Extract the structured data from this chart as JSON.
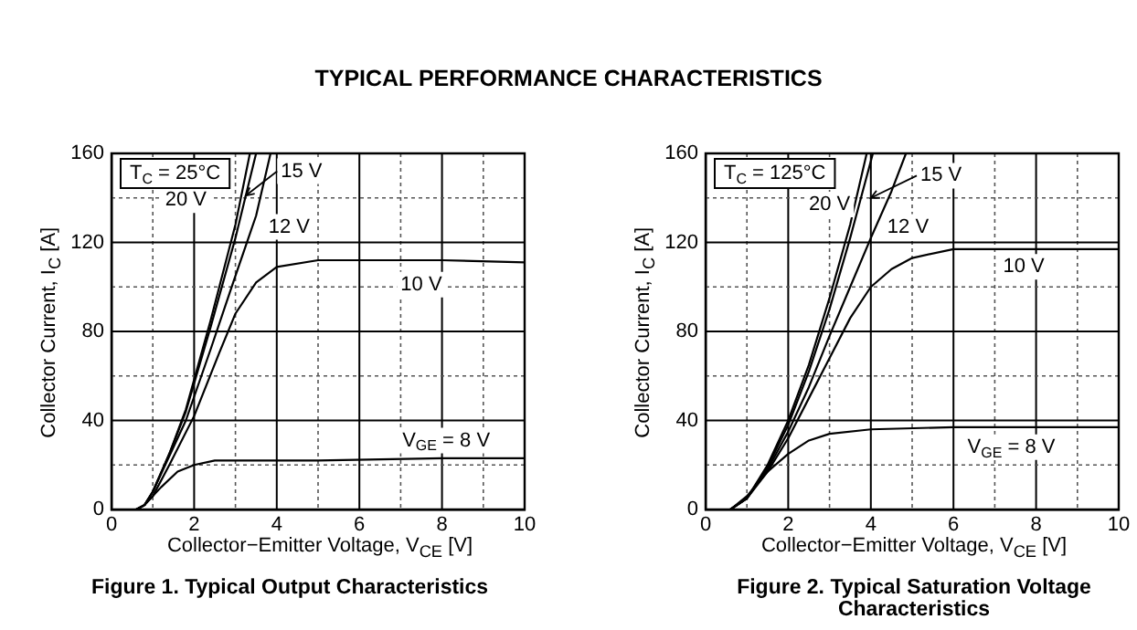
{
  "chart_data": [
    {
      "type": "line",
      "title": "Figure 1. Typical Output Characteristics",
      "xlabel": "Collector−Emitter Voltage, V$_{CE}$ [V]",
      "ylabel": "Collector Current, I$_{C}$ [A]",
      "annotations": [
        "TYPICAL PERFORMANCE CHARACTERISTICS",
        "T$_{C}$ = 25°C"
      ],
      "xlim": [
        0,
        10
      ],
      "ylim": [
        0,
        160
      ],
      "xticks": [
        0,
        {
          "value": 1,
          "label": null
        },
        2,
        {
          "value": 3,
          "label": null
        },
        4,
        {
          "value": 5,
          "label": null
        },
        6,
        {
          "value": 7,
          "label": null
        },
        8,
        {
          "value": 9,
          "label": null
        },
        10
      ],
      "yticks": [
        0,
        {
          "value": 20,
          "label": null
        },
        40,
        {
          "value": 60,
          "label": null
        },
        80,
        {
          "value": 100,
          "label": null
        },
        120,
        {
          "value": 140,
          "label": null
        },
        160
      ],
      "grid": true,
      "series": [
        {
          "name": "20 V",
          "color": "#000000",
          "x": [
            0,
            0.6,
            0.8,
            1,
            1.4,
            1.8,
            2.4,
            3,
            3.35
          ],
          "values": [
            0,
            0,
            2,
            8,
            25,
            45,
            85,
            128,
            160
          ]
        },
        {
          "name": "15 V",
          "color": "#000000",
          "x": [
            0,
            0.6,
            0.8,
            1,
            1.4,
            1.8,
            2.4,
            3,
            3.5
          ],
          "values": [
            0,
            0,
            2,
            8,
            25,
            44,
            82,
            122,
            160
          ]
        },
        {
          "name": "12 V",
          "color": "#000000",
          "x": [
            0,
            0.6,
            0.8,
            1,
            1.4,
            1.8,
            2.4,
            3,
            3.5,
            3.85
          ],
          "values": [
            0,
            0,
            2,
            8,
            24,
            40,
            72,
            105,
            132,
            160
          ]
        },
        {
          "name": "10 V",
          "color": "#000000",
          "x": [
            0,
            0.6,
            0.8,
            1,
            1.4,
            2,
            2.6,
            3,
            3.5,
            4,
            5,
            6,
            8,
            10
          ],
          "values": [
            0,
            0,
            2,
            6,
            20,
            42,
            70,
            88,
            102,
            109,
            112,
            112,
            112,
            111
          ]
        },
        {
          "name": "V$_{GE}$ = 8 V",
          "color": "#000000",
          "x": [
            0,
            0.6,
            0.8,
            1.2,
            1.6,
            2,
            2.5,
            3,
            5,
            8,
            10
          ],
          "values": [
            0,
            0,
            2,
            10,
            17,
            20,
            22,
            22,
            22,
            23,
            23
          ]
        }
      ]
    },
    {
      "type": "line",
      "title": "Figure 2. Typical Saturation Voltage Characteristics",
      "xlabel": "Collector−Emitter Voltage, V$_{CE}$ [V]",
      "ylabel": "Collector Current, I$_{C}$ [A]",
      "annotations": [
        "T$_{C}$ = 125°C"
      ],
      "xlim": [
        0,
        10
      ],
      "ylim": [
        0,
        160
      ],
      "xticks": [
        0,
        {
          "value": 1,
          "label": null
        },
        2,
        {
          "value": 3,
          "label": null
        },
        4,
        {
          "value": 5,
          "label": null
        },
        6,
        {
          "value": 7,
          "label": null
        },
        8,
        {
          "value": 9,
          "label": null
        },
        10
      ],
      "yticks": [
        0,
        {
          "value": 20,
          "label": null
        },
        40,
        {
          "value": 60,
          "label": null
        },
        80,
        {
          "value": 100,
          "label": null
        },
        120,
        {
          "value": 140,
          "label": null
        },
        160
      ],
      "grid": true,
      "series": [
        {
          "name": "20 V",
          "color": "#000000",
          "x": [
            0,
            0.6,
            1,
            1.5,
            2,
            2.5,
            3,
            3.5,
            3.9
          ],
          "values": [
            0,
            0,
            5,
            20,
            40,
            65,
            95,
            128,
            160
          ]
        },
        {
          "name": "15 V",
          "color": "#000000",
          "x": [
            0,
            0.6,
            1,
            1.5,
            2,
            2.5,
            3,
            3.5,
            4.05
          ],
          "values": [
            0,
            0,
            5,
            19,
            38,
            62,
            90,
            122,
            160
          ]
        },
        {
          "name": "12 V",
          "color": "#000000",
          "x": [
            0,
            0.6,
            1,
            1.5,
            2,
            2.5,
            3,
            3.5,
            4,
            4.5,
            4.85
          ],
          "values": [
            0,
            0,
            5,
            18,
            35,
            55,
            78,
            100,
            122,
            143,
            160
          ]
        },
        {
          "name": "10 V",
          "color": "#000000",
          "x": [
            0,
            0.6,
            1,
            1.5,
            2,
            2.5,
            3,
            3.5,
            4,
            4.5,
            5,
            6,
            8,
            10
          ],
          "values": [
            0,
            0,
            5,
            17,
            32,
            50,
            68,
            86,
            100,
            108,
            113,
            117,
            117,
            117
          ]
        },
        {
          "name": "V$_{GE}$ = 8 V",
          "color": "#000000",
          "x": [
            0,
            0.6,
            1,
            1.5,
            2,
            2.5,
            3,
            4,
            6,
            10
          ],
          "values": [
            0,
            0,
            6,
            17,
            25,
            31,
            34,
            36,
            37,
            37
          ]
        }
      ]
    }
  ]
}
